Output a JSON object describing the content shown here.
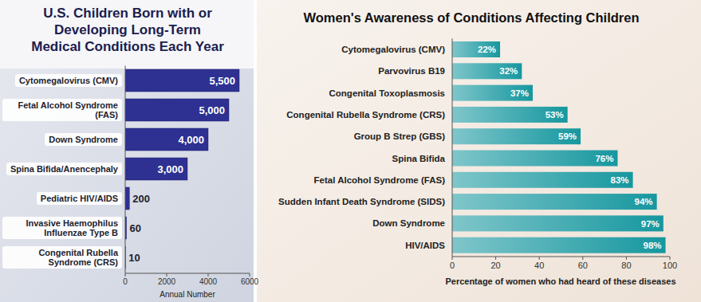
{
  "chart_data": [
    {
      "type": "bar",
      "orientation": "horizontal",
      "title": "U.S. Children Born with or Developing Long-Term Medical Conditions Each Year",
      "xlabel": "Annual Number",
      "categories": [
        "Cytomegalovirus (CMV)",
        "Fetal Alcohol Syndrome (FAS)",
        "Down Syndrome",
        "Spina Bifida/Anencephaly",
        "Pediatric HIV/AIDS",
        "Invasive Haemophilus Influenzae Type B",
        "Congenital Rubella Syndrome (CRS)"
      ],
      "values": [
        5500,
        5000,
        4000,
        3000,
        200,
        60,
        10
      ],
      "value_labels": [
        "5,500",
        "5,000",
        "4,000",
        "3,000",
        "200",
        "60",
        "10"
      ],
      "data_labels": true,
      "color": "#2e3192",
      "xlim": [
        0,
        6000
      ],
      "xticks": [
        0,
        2000,
        4000,
        6000
      ]
    },
    {
      "type": "bar",
      "orientation": "horizontal",
      "title": "Women's Awareness of Conditions Affecting Children",
      "xlabel": "Percentage of women who had heard of these diseases",
      "categories": [
        "Cytomegalovirus (CMV)",
        "Parvovirus B19",
        "Congenital Toxoplasmosis",
        "Congenital Rubella Syndrome (CRS)",
        "Group B Strep (GBS)",
        "Spina Bifida",
        "Fetal Alcohol Syndrome (FAS)",
        "Sudden Infant Death Syndrome (SIDS)",
        "Down Syndrome",
        "HIV/AIDS"
      ],
      "values": [
        22,
        32,
        37,
        53,
        59,
        76,
        83,
        94,
        97,
        98
      ],
      "value_labels": [
        "22%",
        "32%",
        "37%",
        "53%",
        "59%",
        "76%",
        "83%",
        "94%",
        "97%",
        "98%"
      ],
      "data_labels": true,
      "color": "#16979f",
      "xlim": [
        0,
        100
      ],
      "xticks": [
        0,
        20,
        40,
        60,
        80,
        100
      ]
    }
  ]
}
